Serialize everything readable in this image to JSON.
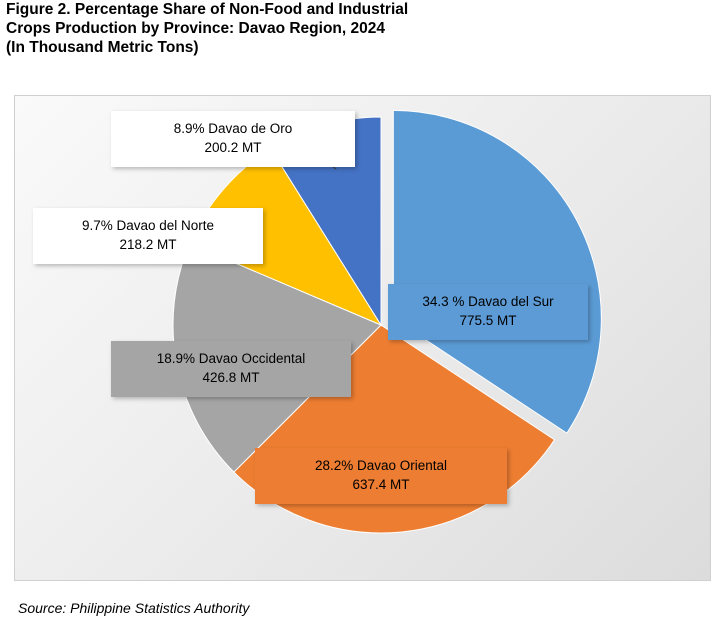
{
  "title_lines": [
    "Figure 2. Percentage Share of Non-Food and Industrial",
    "Crops Production by Province: Davao Region, 2024",
    "(In Thousand Metric Tons)"
  ],
  "source": "Source: Philippine Statistics Authority",
  "chart_data": {
    "type": "pie",
    "title": "Figure 2. Percentage Share of Non-Food and Industrial Crops Production by Province: Davao Region, 2024 (In Thousand Metric Tons)",
    "unit": "Thousand Metric Tons",
    "slices": [
      {
        "name": "Davao del Sur",
        "percent": 34.3,
        "value": 775.5,
        "color": "#5b9bd5",
        "label_lines": [
          "34.3 % Davao del Sur",
          "775.5 MT"
        ],
        "label_fill": "#5b9bd5",
        "exploded": true
      },
      {
        "name": "Davao Oriental",
        "percent": 28.2,
        "value": 637.4,
        "color": "#ed7d31",
        "label_lines": [
          "28.2% Davao Oriental",
          "637.4 MT"
        ],
        "label_fill": "#ed7d31",
        "exploded": false
      },
      {
        "name": "Davao Occidental",
        "percent": 18.9,
        "value": 426.8,
        "color": "#a5a5a5",
        "label_lines": [
          "18.9% Davao Occidental",
          "426.8 MT"
        ],
        "label_fill": "#a5a5a5",
        "exploded": false
      },
      {
        "name": "Davao del Norte",
        "percent": 9.7,
        "value": 218.2,
        "color": "#ffc000",
        "label_lines": [
          "9.7%  Davao del Norte",
          "218.2 MT"
        ],
        "label_fill": "#ffffff",
        "exploded": false
      },
      {
        "name": "Davao de Oro",
        "percent": 8.9,
        "value": 200.2,
        "color": "#4472c4",
        "label_lines": [
          "8.9% Davao  de Oro",
          "200.2 MT"
        ],
        "label_fill": "#ffffff",
        "exploded": false
      }
    ],
    "legend": "none"
  }
}
